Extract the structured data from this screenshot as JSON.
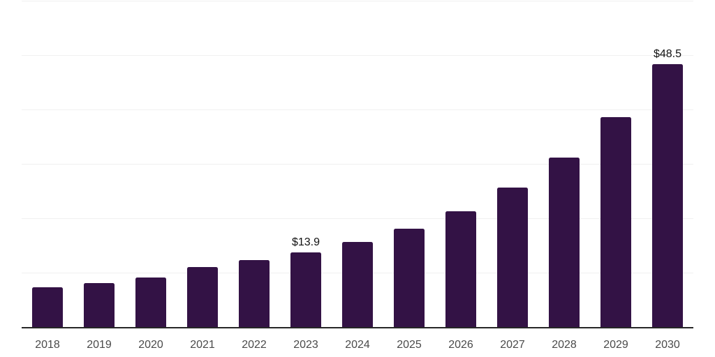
{
  "chart_data": {
    "type": "bar",
    "title": "",
    "xlabel": "",
    "ylabel": "",
    "categories": [
      "2018",
      "2019",
      "2020",
      "2021",
      "2022",
      "2023",
      "2024",
      "2025",
      "2026",
      "2027",
      "2028",
      "2029",
      "2030"
    ],
    "values": [
      7.4,
      8.2,
      9.2,
      11.2,
      12.4,
      13.9,
      15.8,
      18.2,
      21.4,
      25.8,
      31.3,
      38.7,
      48.5
    ],
    "data_labels": [
      "",
      "",
      "",
      "",
      "",
      "$13.9",
      "",
      "",
      "",
      "",
      "",
      "",
      "$48.5"
    ],
    "ylim": [
      0,
      60
    ],
    "gridline_values": [
      10,
      20,
      30,
      40,
      50,
      60
    ],
    "grid": "on",
    "legend": "none",
    "y_axis_labels": "none",
    "colors": {
      "bar": "#331245",
      "grid": "#f0f0f0",
      "axis": "#262626",
      "tick_label": "#4a4a4a",
      "value_label": "#111111",
      "background": "#ffffff"
    }
  }
}
